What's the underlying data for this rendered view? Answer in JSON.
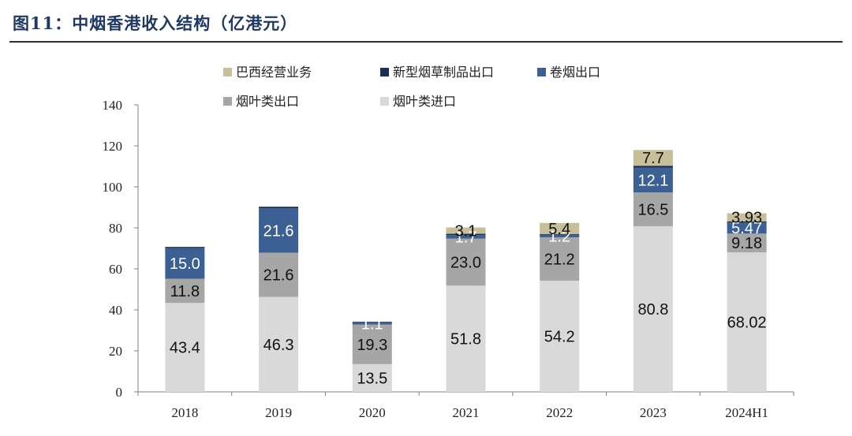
{
  "page": {
    "title": "图11：中烟香港收入结构（亿港元）"
  },
  "chart_data": {
    "type": "bar",
    "stacked": true,
    "title": "",
    "xlabel": "",
    "ylabel": "",
    "ylim": [
      0,
      140
    ],
    "yticks": [
      0,
      20,
      40,
      60,
      80,
      100,
      120,
      140
    ],
    "categories": [
      "2018",
      "2019",
      "2020",
      "2021",
      "2022",
      "2023",
      "2024H1"
    ],
    "legend_position": "top",
    "legend_order": [
      4,
      3,
      2,
      1,
      0
    ],
    "series": [
      {
        "name": "烟叶类进口",
        "color": "#d9d9d9",
        "label_color": "#111111",
        "values": [
          43.4,
          46.3,
          13.5,
          51.8,
          54.2,
          80.8,
          68.02
        ],
        "labels": [
          "43.4",
          "46.3",
          "13.5",
          "51.8",
          "54.2",
          "80.8",
          "68.02"
        ]
      },
      {
        "name": "烟叶类出口",
        "color": "#a6a6a6",
        "label_color": "#111111",
        "values": [
          11.8,
          21.6,
          19.3,
          23.0,
          21.2,
          16.5,
          9.18
        ],
        "labels": [
          "11.8",
          "21.6",
          "19.3",
          "23.0",
          "21.2",
          "16.5",
          "9.18"
        ]
      },
      {
        "name": "卷烟出口",
        "color": "#3c5f94",
        "label_color": "#ffffff",
        "values": [
          15.0,
          21.6,
          1.1,
          1.7,
          1.2,
          12.1,
          5.47
        ],
        "labels": [
          "15.0",
          "21.6",
          "1.1",
          "1.7",
          "1.2",
          "12.1",
          "5.47"
        ]
      },
      {
        "name": "新型烟草制品出口",
        "color": "#1b2f52",
        "label_color": "#ffffff",
        "values": [
          0.5,
          0.8,
          0.3,
          0.6,
          0.4,
          0.9,
          0.5
        ],
        "labels": [
          "",
          "",
          "",
          "",
          "",
          "",
          ""
        ]
      },
      {
        "name": "巴西经营业务",
        "color": "#c7bf99",
        "label_color": "#111111",
        "values": [
          0,
          0,
          0,
          3.1,
          5.4,
          7.7,
          3.93
        ],
        "labels": [
          "",
          "",
          "",
          "3.1",
          "5.4",
          "7.7",
          "3.93"
        ]
      }
    ]
  }
}
